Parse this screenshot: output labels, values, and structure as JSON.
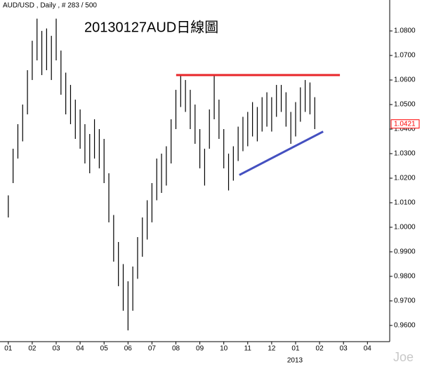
{
  "chart_data": {
    "type": "highlow",
    "header": "AUD/USD , Daily , # 283 / 500",
    "title": "20130127AUD日線圖",
    "watermark": "Joe",
    "year_label": "2013",
    "color": "#000000",
    "series": [
      {
        "x": [
          0,
          0.2,
          0.4,
          0.6,
          0.8,
          1,
          1.2,
          1.4,
          1.6,
          1.8,
          2,
          2.2,
          2.4,
          2.6,
          2.8,
          3,
          3.2,
          3.4,
          3.6,
          3.8,
          4,
          4.2,
          4.4,
          4.6,
          4.8,
          5,
          5.2,
          5.4,
          5.6,
          5.8,
          6,
          6.2,
          6.4,
          6.6,
          6.8,
          7,
          7.2,
          7.4,
          7.6,
          7.8,
          8,
          8.2,
          8.4,
          8.6,
          8.8,
          9,
          9.2,
          9.4,
          9.6,
          9.8,
          10,
          10.2,
          10.4,
          10.6,
          10.8,
          11,
          11.2,
          11.4,
          11.6,
          11.8,
          12,
          12.2,
          12.4,
          12.6,
          12.8
        ],
        "high": [
          1.013,
          1.032,
          1.042,
          1.05,
          1.064,
          1.076,
          1.085,
          1.08,
          1.081,
          1.078,
          1.085,
          1.072,
          1.063,
          1.058,
          1.052,
          1.048,
          1.042,
          1.038,
          1.044,
          1.04,
          1.036,
          1.022,
          1.005,
          0.994,
          0.985,
          0.978,
          0.984,
          0.996,
          1.004,
          1.011,
          1.018,
          1.028,
          1.03,
          1.033,
          1.044,
          1.056,
          1.062,
          1.06,
          1.056,
          1.05,
          1.04,
          1.032,
          1.048,
          1.062,
          1.052,
          1.04,
          1.03,
          1.033,
          1.041,
          1.045,
          1.047,
          1.051,
          1.049,
          1.053,
          1.055,
          1.053,
          1.058,
          1.058,
          1.055,
          1.047,
          1.051,
          1.057,
          1.06,
          1.059,
          1.053
        ],
        "low": [
          1.004,
          1.018,
          1.028,
          1.035,
          1.046,
          1.06,
          1.068,
          1.062,
          1.064,
          1.06,
          1.068,
          1.054,
          1.046,
          1.042,
          1.036,
          1.032,
          1.026,
          1.022,
          1.028,
          1.024,
          1.018,
          1.002,
          0.986,
          0.976,
          0.966,
          0.958,
          0.966,
          0.979,
          0.988,
          0.995,
          1.002,
          1.011,
          1.014,
          1.017,
          1.026,
          1.04,
          1.049,
          1.047,
          1.04,
          1.034,
          1.024,
          1.017,
          1.032,
          1.044,
          1.036,
          1.024,
          1.015,
          1.019,
          1.027,
          1.031,
          1.033,
          1.037,
          1.035,
          1.039,
          1.041,
          1.039,
          1.045,
          1.047,
          1.041,
          1.034,
          1.037,
          1.043,
          1.047,
          1.046,
          1.04
        ]
      }
    ],
    "last_price": {
      "value": 1.0421,
      "label": "1.0421",
      "color": "#ff0000"
    },
    "lines": [
      {
        "color": "#e8262a",
        "x": [
          7.01,
          13.85
        ],
        "y": [
          1.062,
          1.062
        ]
      },
      {
        "color": "#4450c0",
        "x": [
          9.65,
          13.15
        ],
        "y": [
          1.0213,
          1.039
        ]
      }
    ],
    "xlim": [
      -0.2,
      15.93
    ],
    "ylim": [
      0.9534,
      1.0926
    ],
    "yticks": [
      {
        "value": 1.08,
        "label": "1.0800"
      },
      {
        "value": 1.07,
        "label": "1.0700"
      },
      {
        "value": 1.06,
        "label": "1.0600"
      },
      {
        "value": 1.05,
        "label": "1.0500"
      },
      {
        "value": 1.04,
        "label": "1.0400"
      },
      {
        "value": 1.03,
        "label": "1.0300"
      },
      {
        "value": 1.02,
        "label": "1.0200"
      },
      {
        "value": 1.01,
        "label": "1.0100"
      },
      {
        "value": 1.0,
        "label": "1.0000"
      },
      {
        "value": 0.99,
        "label": "0.9900"
      },
      {
        "value": 0.98,
        "label": "0.9800"
      },
      {
        "value": 0.97,
        "label": "0.9700"
      },
      {
        "value": 0.96,
        "label": "0.9600"
      }
    ],
    "xticks": [
      {
        "value": 0,
        "label": "01"
      },
      {
        "value": 1,
        "label": "02"
      },
      {
        "value": 2,
        "label": "03"
      },
      {
        "value": 3,
        "label": "04"
      },
      {
        "value": 4,
        "label": "05"
      },
      {
        "value": 5,
        "label": "06"
      },
      {
        "value": 6,
        "label": "07"
      },
      {
        "value": 7,
        "label": "08"
      },
      {
        "value": 8,
        "label": "09"
      },
      {
        "value": 9,
        "label": "10"
      },
      {
        "value": 10,
        "label": "11"
      },
      {
        "value": 11,
        "label": "12"
      },
      {
        "value": 12,
        "label": "01"
      },
      {
        "value": 13,
        "label": "02"
      },
      {
        "value": 14,
        "label": "03"
      },
      {
        "value": 15,
        "label": "04"
      }
    ]
  }
}
